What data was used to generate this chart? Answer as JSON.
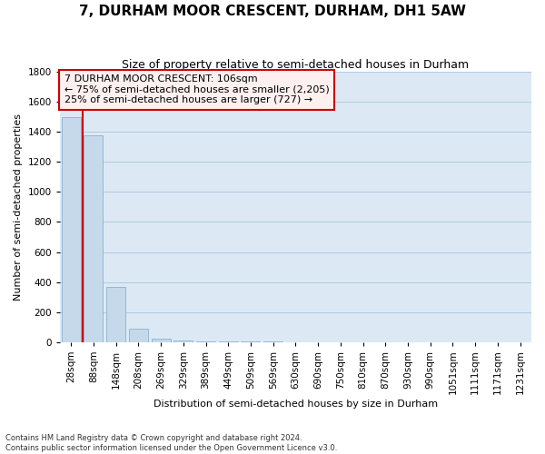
{
  "title": "7, DURHAM MOOR CRESCENT, DURHAM, DH1 5AW",
  "subtitle": "Size of property relative to semi-detached houses in Durham",
  "xlabel": "Distribution of semi-detached houses by size in Durham",
  "ylabel": "Number of semi-detached properties",
  "annotation_line1": "7 DURHAM MOOR CRESCENT: 106sqm",
  "annotation_line2": "← 75% of semi-detached houses are smaller (2,205)",
  "annotation_line3": "25% of semi-detached houses are larger (727) →",
  "categories": [
    "28sqm",
    "88sqm",
    "148sqm",
    "208sqm",
    "269sqm",
    "329sqm",
    "389sqm",
    "449sqm",
    "509sqm",
    "569sqm",
    "630sqm",
    "690sqm",
    "750sqm",
    "810sqm",
    "870sqm",
    "930sqm",
    "990sqm",
    "1051sqm",
    "1111sqm",
    "1171sqm",
    "1231sqm"
  ],
  "values": [
    1500,
    1380,
    370,
    90,
    25,
    8,
    5,
    3,
    2,
    2,
    1,
    1,
    1,
    1,
    1,
    1,
    1,
    1,
    1,
    1,
    1
  ],
  "bar_color_normal": "#c5d9ea",
  "bar_color_left": "#c5d9ea",
  "bar_edge_color": "#93b8d4",
  "vline_color": "#cc0000",
  "vline_x": 0.5,
  "annotation_box_facecolor": "#fff0f0",
  "annotation_box_edge": "#cc0000",
  "background_color": "#ffffff",
  "plot_bg_color": "#dce9f5",
  "grid_color": "#b0c8e0",
  "footnote1": "Contains HM Land Registry data © Crown copyright and database right 2024.",
  "footnote2": "Contains public sector information licensed under the Open Government Licence v3.0.",
  "ylim": [
    0,
    1800
  ],
  "yticks": [
    0,
    200,
    400,
    600,
    800,
    1000,
    1200,
    1400,
    1600,
    1800
  ],
  "title_fontsize": 11,
  "subtitle_fontsize": 9,
  "axis_label_fontsize": 8,
  "tick_fontsize": 7.5,
  "annotation_fontsize": 8
}
